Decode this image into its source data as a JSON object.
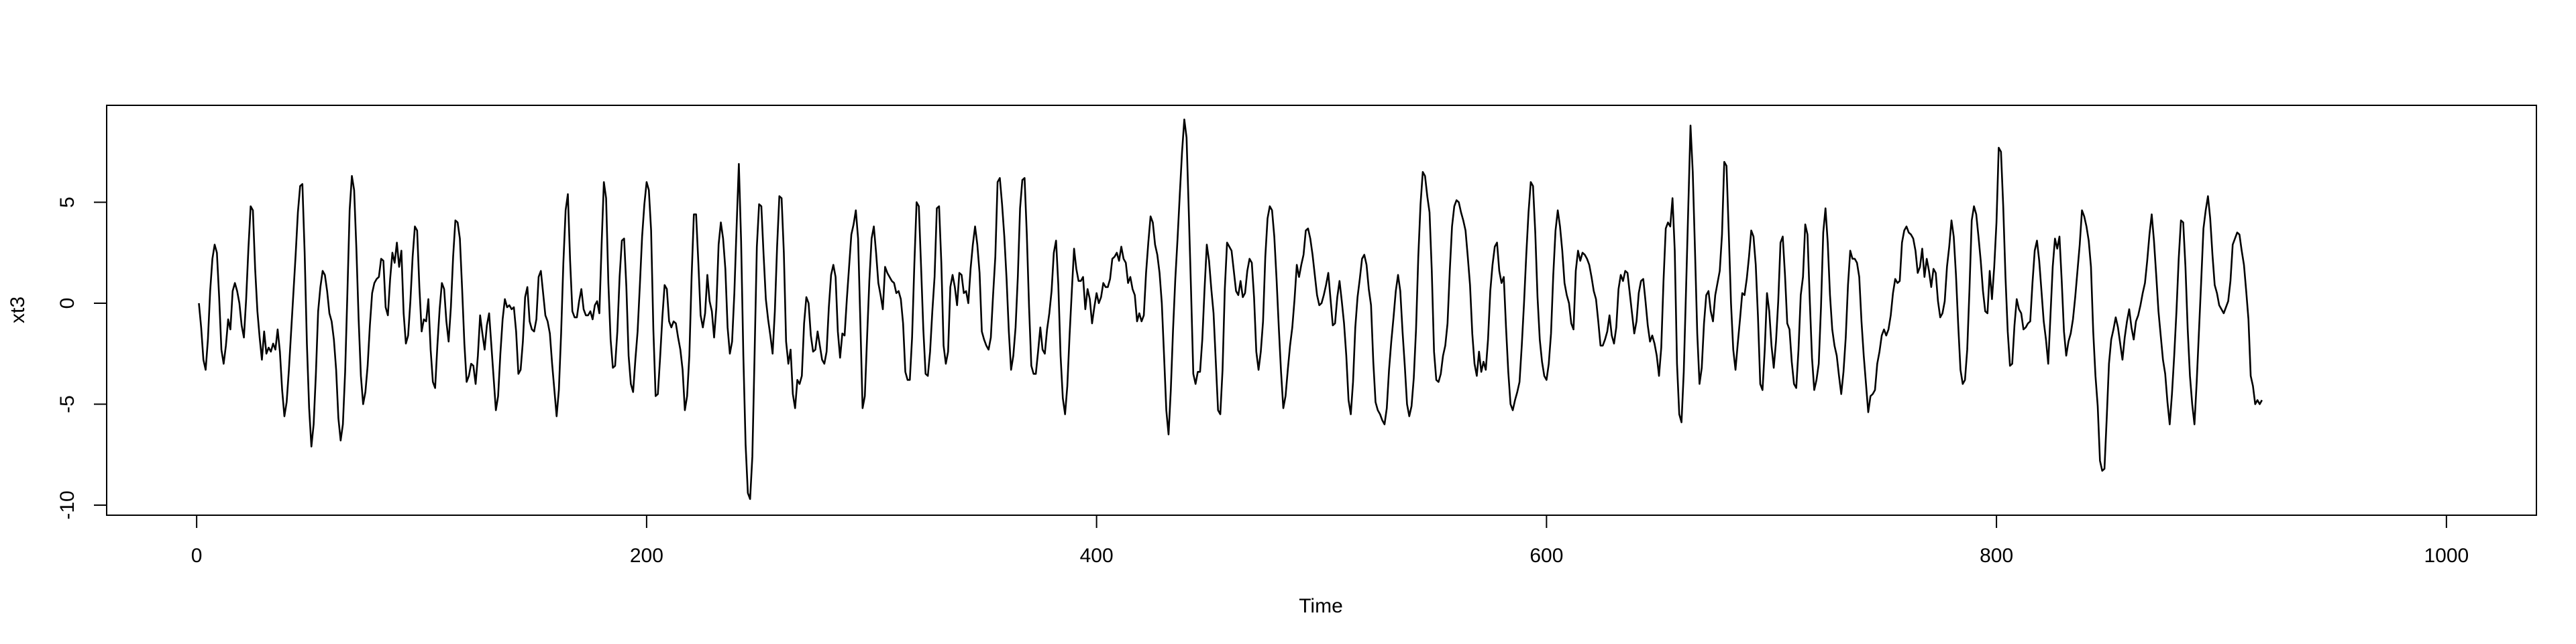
{
  "chart_data": {
    "type": "line",
    "xlabel": "Time",
    "ylabel": "xt3",
    "xlim": [
      -40,
      1040
    ],
    "ylim": [
      -10.5,
      9.8
    ],
    "x_ticks": [
      0,
      200,
      400,
      600,
      800,
      1000
    ],
    "x_tick_labels": [
      "0",
      "200",
      "400",
      "600",
      "800",
      "1000"
    ],
    "y_ticks": [
      -10,
      -5,
      0,
      5
    ],
    "y_tick_labels": [
      "-10",
      "-5",
      "0",
      "5"
    ],
    "grid": false,
    "legend": "none",
    "line_color": "#000000",
    "series": [
      {
        "x_start": 1,
        "x_step": 1,
        "values": [
          0,
          -1.2,
          -2.8,
          -3.3,
          -1.8,
          0.6,
          2.2,
          2.9,
          2.5,
          0.3,
          -2.3,
          -3.0,
          -2.1,
          -0.8,
          -1.3,
          0.6,
          1.0,
          0.6,
          0,
          -1.1,
          -1.7,
          0.2,
          2.7,
          4.8,
          4.6,
          1.7,
          -0.4,
          -1.7,
          -2.8,
          -1.4,
          -2.5,
          -2.2,
          -2.4,
          -2.0,
          -2.3,
          -1.3,
          -2.4,
          -4.3,
          -5.6,
          -4.9,
          -3.3,
          -1.4,
          0.5,
          2.4,
          4.5,
          5.8,
          5.9,
          2.5,
          -2.0,
          -5.2,
          -7.1,
          -6.0,
          -3.5,
          -0.4,
          0.8,
          1.6,
          1.4,
          0.6,
          -0.5,
          -0.9,
          -1.8,
          -3.3,
          -5.7,
          -6.8,
          -6.0,
          -3.4,
          0.5,
          4.6,
          6.3,
          5.6,
          2.7,
          -0.8,
          -3.6,
          -5.0,
          -4.4,
          -3.1,
          -1.1,
          0.5,
          1.0,
          1.2,
          1.3,
          2.2,
          2.1,
          -0.2,
          -0.6,
          1.2,
          2.5,
          2.0,
          3.0,
          1.8,
          2.6,
          -0.5,
          -2.0,
          -1.6,
          0.1,
          2.3,
          3.8,
          3.6,
          0.8,
          -1.4,
          -0.8,
          -0.9,
          0.2,
          -2.3,
          -3.9,
          -4.2,
          -2.1,
          -0.3,
          1.0,
          0.7,
          -0.9,
          -1.9,
          -0.2,
          2.3,
          4.1,
          4.0,
          3.2,
          0.7,
          -2.0,
          -3.9,
          -3.6,
          -3.0,
          -3.1,
          -4.0,
          -2.6,
          -0.6,
          -1.5,
          -2.3,
          -1.1,
          -0.5,
          -2.1,
          -3.7,
          -5.3,
          -4.6,
          -2.5,
          -0.8,
          0.2,
          -0.2,
          -0.1,
          -0.3,
          -0.2,
          -1.4,
          -3.5,
          -3.3,
          -1.9,
          0.3,
          0.8,
          -0.9,
          -1.3,
          -1.4,
          -0.8,
          1.3,
          1.6,
          0.5,
          -0.6,
          -0.9,
          -1.5,
          -3.0,
          -4.3,
          -5.6,
          -4.3,
          -1.5,
          2.0,
          4.6,
          5.4,
          2.1,
          -0.4,
          -0.7,
          -0.7,
          0.1,
          0.7,
          -0.3,
          -0.6,
          -0.6,
          -0.4,
          -0.8,
          -0.1,
          0.1,
          -0.5,
          2.9,
          6.0,
          5.2,
          1.0,
          -1.8,
          -3.2,
          -3.1,
          -1.4,
          1.3,
          3.1,
          3.2,
          0.8,
          -2.6,
          -4.0,
          -4.4,
          -2.8,
          -1.4,
          0.9,
          3.3,
          4.9,
          6.0,
          5.6,
          3.6,
          -1.3,
          -4.6,
          -4.5,
          -2.7,
          -0.7,
          0.9,
          0.7,
          -0.9,
          -1.2,
          -0.9,
          -1.0,
          -1.7,
          -2.3,
          -3.3,
          -5.3,
          -4.6,
          -2.6,
          1.3,
          4.4,
          4.4,
          2.0,
          -0.6,
          -1.2,
          -0.5,
          1.4,
          0.1,
          -0.4,
          -1.7,
          -0.2,
          2.9,
          4.0,
          3.2,
          1.7,
          -1.2,
          -2.5,
          -1.9,
          0.5,
          3.8,
          6.9,
          3.1,
          -2.6,
          -7.0,
          -9.4,
          -9.7,
          -7.6,
          -2.5,
          2.8,
          4.9,
          4.8,
          2.4,
          0.2,
          -0.8,
          -1.6,
          -2.5,
          -0.4,
          2.8,
          5.3,
          5.2,
          2.5,
          -1.9,
          -3.0,
          -2.3,
          -4.5,
          -5.2,
          -3.8,
          -4.0,
          -3.6,
          -1.0,
          0.3,
          0.0,
          -1.6,
          -2.4,
          -2.3,
          -1.4,
          -2.1,
          -2.8,
          -3.0,
          -2.4,
          -0.2,
          1.4,
          1.9,
          1.3,
          -1.4,
          -2.7,
          -1.5,
          -1.6,
          0.2,
          1.8,
          3.4,
          3.9,
          4.6,
          3.2,
          -0.9,
          -5.2,
          -4.6,
          -1.7,
          1.1,
          3.2,
          3.8,
          2.5,
          1.0,
          0.4,
          -0.3,
          1.8,
          1.5,
          1.3,
          1.1,
          1.0,
          0.5,
          0.6,
          0.2,
          -1.0,
          -3.4,
          -3.8,
          -3.8,
          -1.7,
          1.9,
          5.0,
          4.8,
          1.8,
          -1.3,
          -3.5,
          -3.6,
          -2.4,
          -0.4,
          1.3,
          4.7,
          4.8,
          2.0,
          -2.1,
          -3.0,
          -2.4,
          0.8,
          1.4,
          0.8,
          -0.1,
          1.5,
          1.4,
          0.5,
          0.6,
          0.0,
          1.7,
          2.9,
          3.8,
          2.9,
          1.5,
          -1.4,
          -1.8,
          -2.1,
          -2.3,
          -1.7,
          0.4,
          2.3,
          6.0,
          6.2,
          4.9,
          3.3,
          1.2,
          -1.4,
          -3.3,
          -2.6,
          -1.2,
          1.3,
          4.7,
          6.1,
          6.2,
          3.4,
          -0.2,
          -3.1,
          -3.5,
          -3.5,
          -2.4,
          -1.2,
          -2.3,
          -2.5,
          -1.3,
          -0.5,
          0.6,
          2.5,
          3.1,
          0.9,
          -2.6,
          -4.7,
          -5.5,
          -4.1,
          -1.6,
          0.6,
          2.7,
          1.7,
          1.1,
          1.1,
          1.3,
          -0.3,
          0.7,
          0.2,
          -1.0,
          -0.2,
          0.5,
          0.0,
          0.3,
          1.0,
          0.8,
          0.8,
          1.2,
          2.2,
          2.3,
          2.5,
          2.1,
          2.8,
          2.2,
          2.0,
          1.0,
          1.3,
          0.7,
          0.4,
          -0.9,
          -0.5,
          -0.9,
          -0.6,
          1.5,
          3.0,
          4.3,
          4.0,
          2.9,
          2.4,
          1.5,
          0.0,
          -2.6,
          -5.3,
          -6.5,
          -4.3,
          -1.3,
          1.2,
          3.2,
          5.4,
          7.5,
          9.1,
          8.2,
          4.5,
          0.6,
          -3.5,
          -4.0,
          -3.4,
          -3.4,
          -1.8,
          0.7,
          2.9,
          2.1,
          0.7,
          -0.5,
          -2.9,
          -5.3,
          -5.5,
          -3.3,
          0.7,
          3.0,
          2.8,
          2.6,
          1.6,
          0.6,
          0.4,
          1.1,
          0.3,
          0.5,
          1.6,
          2.2,
          2.0,
          0.3,
          -2.4,
          -3.3,
          -2.4,
          -0.9,
          2.3,
          4.2,
          4.8,
          4.6,
          3.3,
          1.2,
          -1.2,
          -3.4,
          -5.2,
          -4.6,
          -3.3,
          -2.1,
          -1.2,
          0.2,
          1.9,
          1.3,
          1.9,
          2.4,
          3.6,
          3.7,
          3.2,
          2.4,
          1.4,
          0.4,
          -0.1,
          0.0,
          0.4,
          0.9,
          1.5,
          0.2,
          -1.1,
          -1.0,
          0.3,
          1.1,
          0.1,
          -1.0,
          -2.6,
          -4.8,
          -5.5,
          -3.9,
          -1.2,
          0.3,
          1.2,
          2.2,
          2.4,
          1.9,
          0.7,
          -0.1,
          -2.9,
          -4.9,
          -5.3,
          -5.5,
          -5.8,
          -6.0,
          -5.2,
          -3.3,
          -1.9,
          -0.7,
          0.6,
          1.4,
          0.6,
          -1.4,
          -3.1,
          -5.0,
          -5.6,
          -5.1,
          -3.7,
          -1.3,
          2.3,
          4.9,
          6.5,
          6.3,
          5.3,
          4.5,
          1.6,
          -2.4,
          -3.8,
          -3.9,
          -3.5,
          -2.6,
          -2.1,
          -1.0,
          1.6,
          3.8,
          4.8,
          5.1,
          5.0,
          4.5,
          4.1,
          3.6,
          2.3,
          0.9,
          -1.5,
          -3.0,
          -3.6,
          -2.4,
          -3.4,
          -2.9,
          -3.3,
          -1.8,
          0.6,
          1.9,
          2.8,
          3.0,
          1.6,
          1.0,
          1.3,
          -1.2,
          -3.4,
          -5.0,
          -5.3,
          -4.8,
          -4.4,
          -3.9,
          -2.1,
          0.0,
          2.4,
          4.5,
          6.0,
          5.8,
          3.5,
          0.3,
          -1.8,
          -2.9,
          -3.6,
          -3.8,
          -3.0,
          -1.5,
          1.4,
          3.6,
          4.6,
          3.8,
          2.6,
          1.0,
          0.4,
          0.0,
          -1.0,
          -1.3,
          1.6,
          2.6,
          2.1,
          2.5,
          2.4,
          2.2,
          1.9,
          1.3,
          0.6,
          0.2,
          -0.9,
          -2.1,
          -2.1,
          -1.8,
          -1.4,
          -0.6,
          -1.6,
          -2.0,
          -1.2,
          0.7,
          1.4,
          1.1,
          1.6,
          1.5,
          0.5,
          -0.5,
          -1.5,
          -0.9,
          0.5,
          1.1,
          1.2,
          0.1,
          -1.1,
          -1.9,
          -1.6,
          -2.0,
          -2.6,
          -3.6,
          -2.2,
          1.1,
          3.7,
          4.0,
          3.8,
          5.2,
          2.6,
          -3.0,
          -5.5,
          -5.9,
          -3.4,
          0.6,
          4.7,
          8.8,
          6.5,
          2.6,
          -1.5,
          -4.0,
          -3.2,
          -1.0,
          0.4,
          0.6,
          -0.4,
          -0.9,
          0.4,
          1.0,
          1.6,
          3.4,
          7.0,
          6.8,
          3.5,
          0.0,
          -2.3,
          -3.3,
          -2.0,
          -0.8,
          0.5,
          0.4,
          1.2,
          2.3,
          3.6,
          3.3,
          1.9,
          -0.7,
          -4.0,
          -4.3,
          -2.3,
          0.5,
          -0.4,
          -2.1,
          -3.2,
          -1.9,
          0.1,
          3.0,
          3.3,
          1.4,
          -1.0,
          -1.3,
          -2.9,
          -4.0,
          -4.2,
          -2.3,
          0.4,
          1.3,
          3.9,
          3.4,
          0.2,
          -2.7,
          -4.3,
          -3.8,
          -3.0,
          -0.2,
          3.5,
          4.7,
          3.0,
          0.4,
          -1.3,
          -2.1,
          -2.6,
          -3.6,
          -4.5,
          -3.4,
          -1.7,
          0.9,
          2.6,
          2.2,
          2.2,
          2.0,
          1.3,
          -0.9,
          -2.6,
          -4.0,
          -5.4,
          -4.6,
          -4.5,
          -4.3,
          -3.0,
          -2.4,
          -1.6,
          -1.3,
          -1.6,
          -1.3,
          -0.6,
          0.5,
          1.2,
          1.0,
          1.1,
          3.0,
          3.6,
          3.8,
          3.5,
          3.4,
          3.2,
          2.6,
          1.5,
          1.8,
          2.7,
          1.3,
          2.2,
          1.6,
          0.8,
          1.7,
          1.5,
          0.1,
          -0.7,
          -0.5,
          0.1,
          1.8,
          2.8,
          4.1,
          3.3,
          1.4,
          -1.1,
          -3.3,
          -4.0,
          -3.8,
          -2.3,
          0.7,
          4.1,
          4.8,
          4.4,
          3.3,
          2.1,
          0.6,
          -0.4,
          -0.5,
          1.6,
          0.2,
          1.8,
          4.0,
          7.7,
          7.5,
          4.8,
          1.3,
          -1.4,
          -3.1,
          -3.0,
          -1.1,
          0.2,
          -0.3,
          -0.5,
          -1.3,
          -1.2,
          -1.0,
          -0.9,
          1.0,
          2.6,
          3.1,
          2.1,
          0.6,
          -0.9,
          -1.8,
          -3.0,
          -0.6,
          1.8,
          3.2,
          2.7,
          3.3,
          1.1,
          -1.4,
          -2.6,
          -1.9,
          -1.5,
          -0.8,
          0.3,
          1.6,
          2.9,
          4.6,
          4.3,
          3.8,
          3.1,
          1.8,
          -1.4,
          -3.6,
          -5.1,
          -7.8,
          -8.3,
          -8.2,
          -5.7,
          -3.0,
          -1.8,
          -1.3,
          -0.7,
          -1.2,
          -2.0,
          -2.8,
          -1.7,
          -0.9,
          -0.3,
          -1.2,
          -1.8,
          -0.9,
          -0.6,
          -0.1,
          0.5,
          1.0,
          2.1,
          3.4,
          4.4,
          3.1,
          1.4,
          -0.4,
          -1.6,
          -2.8,
          -3.5,
          -4.9,
          -6.0,
          -4.5,
          -2.6,
          -0.4,
          2.2,
          4.1,
          4.0,
          1.8,
          -1.3,
          -3.6,
          -5.0,
          -6.0,
          -3.9,
          -1.4,
          1.1,
          3.7,
          4.6,
          5.3,
          4.2,
          2.4,
          0.9,
          0.5,
          -0.1,
          -0.3,
          -0.5,
          -0.2,
          0.1,
          1.1,
          2.9,
          3.2,
          3.5,
          3.4,
          2.6,
          1.9,
          0.6,
          -0.8,
          -3.6,
          -4.1,
          -5.0,
          -4.8,
          -5.0,
          -4.8
        ]
      }
    ]
  }
}
